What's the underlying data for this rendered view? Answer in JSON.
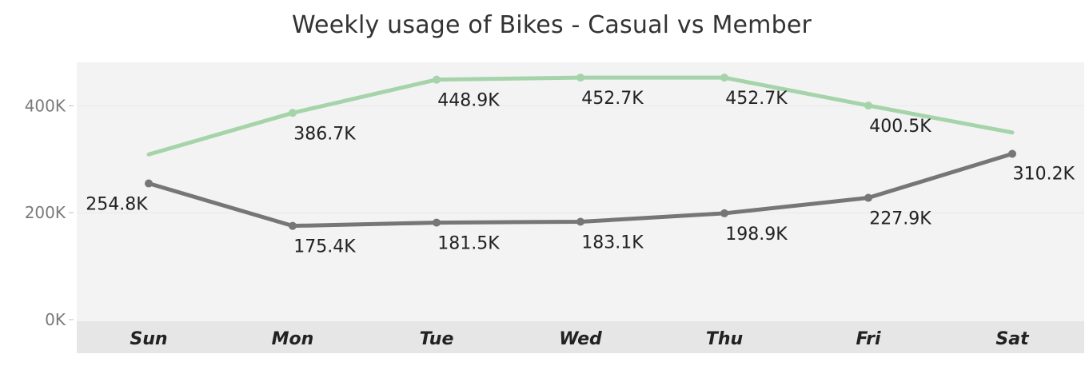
{
  "chart_data": {
    "type": "line",
    "title": "Weekly usage of Bikes - Casual vs Member",
    "categories": [
      "Sun",
      "Mon",
      "Tue",
      "Wed",
      "Thu",
      "Fri",
      "Sat"
    ],
    "y_ticks": [
      "0K",
      "200K",
      "400K"
    ],
    "ylim": [
      0,
      480000
    ],
    "grid": true,
    "series": [
      {
        "color": "#a6d4aa",
        "values": [
          309000,
          386700,
          448900,
          452700,
          452700,
          400500,
          350000
        ],
        "labels": [
          "",
          "386.7K",
          "448.9K",
          "452.7K",
          "452.7K",
          "400.5K",
          ""
        ],
        "markers": [
          false,
          true,
          true,
          true,
          true,
          true,
          false
        ]
      },
      {
        "color": "#767676",
        "values": [
          254800,
          175400,
          181500,
          183100,
          198900,
          227900,
          310200
        ],
        "labels": [
          "254.8K",
          "175.4K",
          "181.5K",
          "183.1K",
          "198.9K",
          "227.9K",
          "310.2K"
        ],
        "markers": [
          true,
          true,
          true,
          true,
          true,
          true,
          true
        ]
      }
    ]
  }
}
